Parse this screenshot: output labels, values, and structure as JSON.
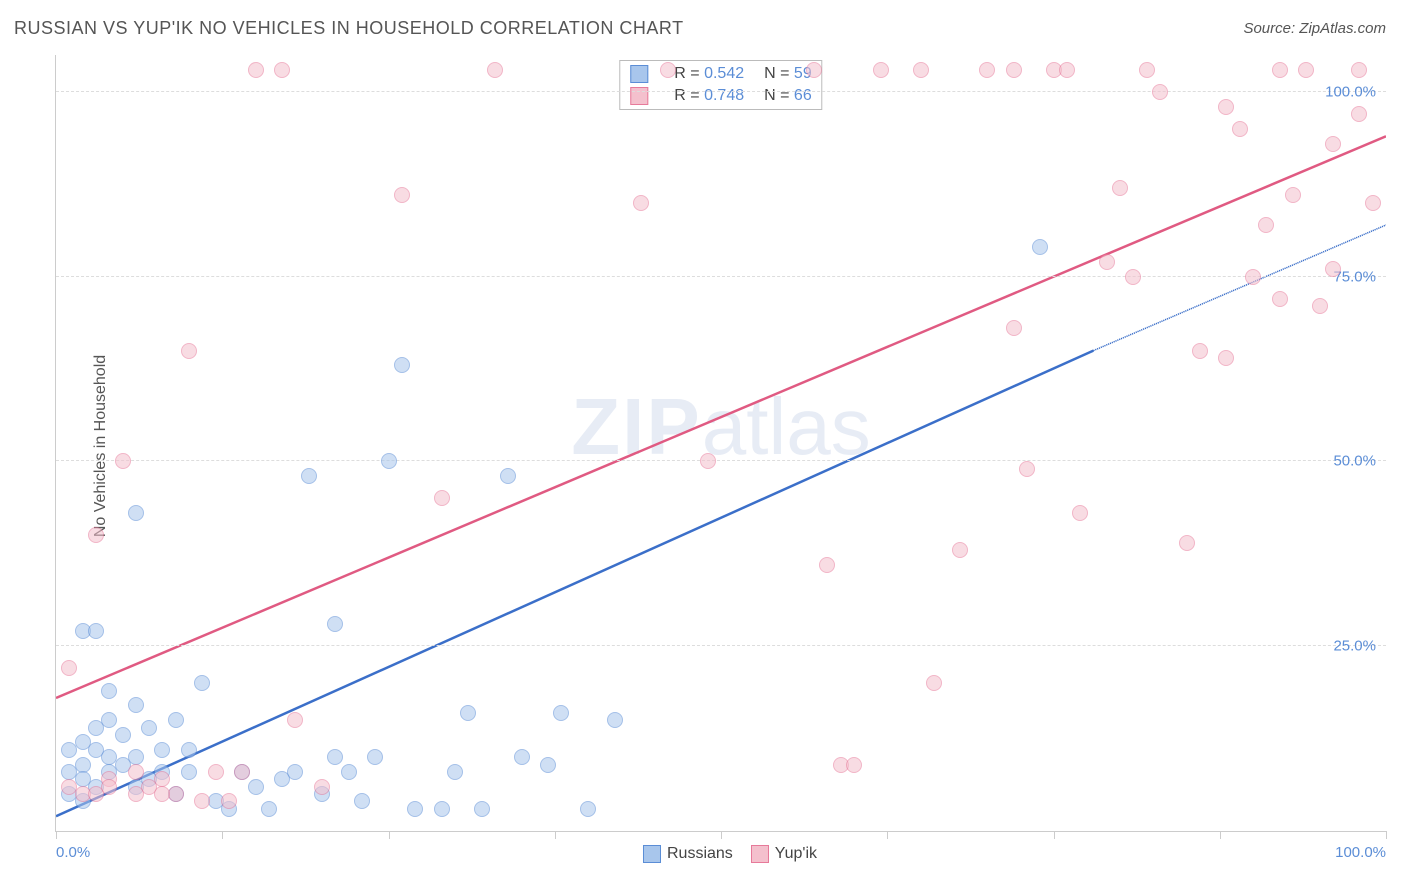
{
  "title": "RUSSIAN VS YUP'IK NO VEHICLES IN HOUSEHOLD CORRELATION CHART",
  "source_label": "Source: ZipAtlas.com",
  "y_axis_label": "No Vehicles in Household",
  "watermark_bold": "ZIP",
  "watermark_light": "atlas",
  "chart": {
    "type": "scatter",
    "xlim": [
      0,
      100
    ],
    "ylim": [
      0,
      105
    ],
    "y_ticks": [
      25,
      50,
      75,
      100
    ],
    "y_tick_labels": [
      "25.0%",
      "50.0%",
      "75.0%",
      "100.0%"
    ],
    "x_ticks": [
      0,
      12.5,
      25,
      37.5,
      50,
      62.5,
      75,
      87.5,
      100
    ],
    "x_tick_labels_shown": {
      "0": "0.0%",
      "100": "100.0%"
    },
    "grid_color": "#dddddd",
    "grid_dashed": true,
    "axis_color": "#cccccc",
    "background_color": "#ffffff",
    "marker_radius": 8,
    "marker_opacity": 0.55,
    "series": [
      {
        "name": "Russians",
        "color_fill": "#a8c6ec",
        "color_stroke": "#5b8dd6",
        "trend_color": "#3b6fc9",
        "trend_width": 2.5,
        "trend_start": [
          0,
          2
        ],
        "trend_end_solid": [
          78,
          65
        ],
        "trend_end_dash": [
          100,
          82
        ],
        "R": "0.542",
        "N": "59",
        "points": [
          [
            2,
            27
          ],
          [
            3,
            27
          ],
          [
            4,
            10
          ],
          [
            1,
            8
          ],
          [
            2,
            9
          ],
          [
            3,
            6
          ],
          [
            1,
            5
          ],
          [
            2,
            4
          ],
          [
            3,
            11
          ],
          [
            4,
            8
          ],
          [
            5,
            13
          ],
          [
            4,
            19
          ],
          [
            6,
            17
          ],
          [
            6,
            43
          ],
          [
            6,
            10
          ],
          [
            7,
            7
          ],
          [
            8,
            8
          ],
          [
            9,
            5
          ],
          [
            9,
            15
          ],
          [
            10,
            8
          ],
          [
            11,
            20
          ],
          [
            12,
            4
          ],
          [
            13,
            3
          ],
          [
            14,
            8
          ],
          [
            15,
            6
          ],
          [
            16,
            3
          ],
          [
            17,
            7
          ],
          [
            19,
            48
          ],
          [
            21,
            28
          ],
          [
            21,
            10
          ],
          [
            22,
            8
          ],
          [
            23,
            4
          ],
          [
            24,
            10
          ],
          [
            25,
            50
          ],
          [
            26,
            63
          ],
          [
            27,
            3
          ],
          [
            29,
            3
          ],
          [
            30,
            8
          ],
          [
            31,
            16
          ],
          [
            32,
            3
          ],
          [
            34,
            48
          ],
          [
            35,
            10
          ],
          [
            37,
            9
          ],
          [
            38,
            16
          ],
          [
            40,
            3
          ],
          [
            2,
            12
          ],
          [
            4,
            15
          ],
          [
            5,
            9
          ],
          [
            7,
            14
          ],
          [
            3,
            14
          ],
          [
            6,
            6
          ],
          [
            8,
            11
          ],
          [
            10,
            11
          ],
          [
            1,
            11
          ],
          [
            2,
            7
          ],
          [
            74,
            79
          ],
          [
            42,
            15
          ],
          [
            18,
            8
          ],
          [
            20,
            5
          ]
        ]
      },
      {
        "name": "Yup'ik",
        "color_fill": "#f4c0cd",
        "color_stroke": "#e77a9a",
        "trend_color": "#e05a82",
        "trend_width": 2.5,
        "trend_start": [
          0,
          18
        ],
        "trend_end_solid": [
          100,
          94
        ],
        "trend_end_dash": null,
        "R": "0.748",
        "N": "66",
        "points": [
          [
            1,
            22
          ],
          [
            1,
            6
          ],
          [
            2,
            5
          ],
          [
            3,
            5
          ],
          [
            3,
            40
          ],
          [
            4,
            7
          ],
          [
            5,
            50
          ],
          [
            6,
            8
          ],
          [
            7,
            6
          ],
          [
            8,
            7
          ],
          [
            9,
            5
          ],
          [
            15,
            103
          ],
          [
            10,
            65
          ],
          [
            11,
            4
          ],
          [
            12,
            8
          ],
          [
            13,
            4
          ],
          [
            14,
            8
          ],
          [
            17,
            103
          ],
          [
            18,
            15
          ],
          [
            20,
            6
          ],
          [
            26,
            86
          ],
          [
            29,
            45
          ],
          [
            33,
            103
          ],
          [
            44,
            85
          ],
          [
            46,
            103
          ],
          [
            49,
            50
          ],
          [
            57,
            103
          ],
          [
            58,
            36
          ],
          [
            59,
            9
          ],
          [
            60,
            9
          ],
          [
            62,
            103
          ],
          [
            65,
            103
          ],
          [
            66,
            20
          ],
          [
            68,
            38
          ],
          [
            72,
            68
          ],
          [
            73,
            49
          ],
          [
            75,
            103
          ],
          [
            76,
            103
          ],
          [
            77,
            43
          ],
          [
            79,
            77
          ],
          [
            80,
            87
          ],
          [
            82,
            103
          ],
          [
            83,
            100
          ],
          [
            85,
            39
          ],
          [
            86,
            65
          ],
          [
            88,
            64
          ],
          [
            88,
            98
          ],
          [
            89,
            95
          ],
          [
            90,
            75
          ],
          [
            91,
            82
          ],
          [
            92,
            72
          ],
          [
            93,
            86
          ],
          [
            94,
            103
          ],
          [
            95,
            71
          ],
          [
            96,
            93
          ],
          [
            96,
            76
          ],
          [
            98,
            103
          ],
          [
            98,
            97
          ],
          [
            99,
            85
          ],
          [
            92,
            103
          ],
          [
            72,
            103
          ],
          [
            6,
            5
          ],
          [
            4,
            6
          ],
          [
            8,
            5
          ],
          [
            70,
            103
          ],
          [
            81,
            75
          ]
        ]
      }
    ]
  },
  "legend_top": {
    "rows": [
      {
        "swatch_fill": "#a8c6ec",
        "swatch_stroke": "#5b8dd6",
        "r_label": "R = ",
        "r_val": "0.542",
        "n_label": "N = ",
        "n_val": "59"
      },
      {
        "swatch_fill": "#f4c0cd",
        "swatch_stroke": "#e77a9a",
        "r_label": "R = ",
        "r_val": "0.748",
        "n_label": "N = ",
        "n_val": "66"
      }
    ]
  },
  "legend_bottom": {
    "items": [
      {
        "swatch_fill": "#a8c6ec",
        "swatch_stroke": "#5b8dd6",
        "label": "Russians"
      },
      {
        "swatch_fill": "#f4c0cd",
        "swatch_stroke": "#e77a9a",
        "label": "Yup'ik"
      }
    ]
  },
  "colors": {
    "label_blue": "#5b8dd6",
    "text_gray": "#555555"
  }
}
